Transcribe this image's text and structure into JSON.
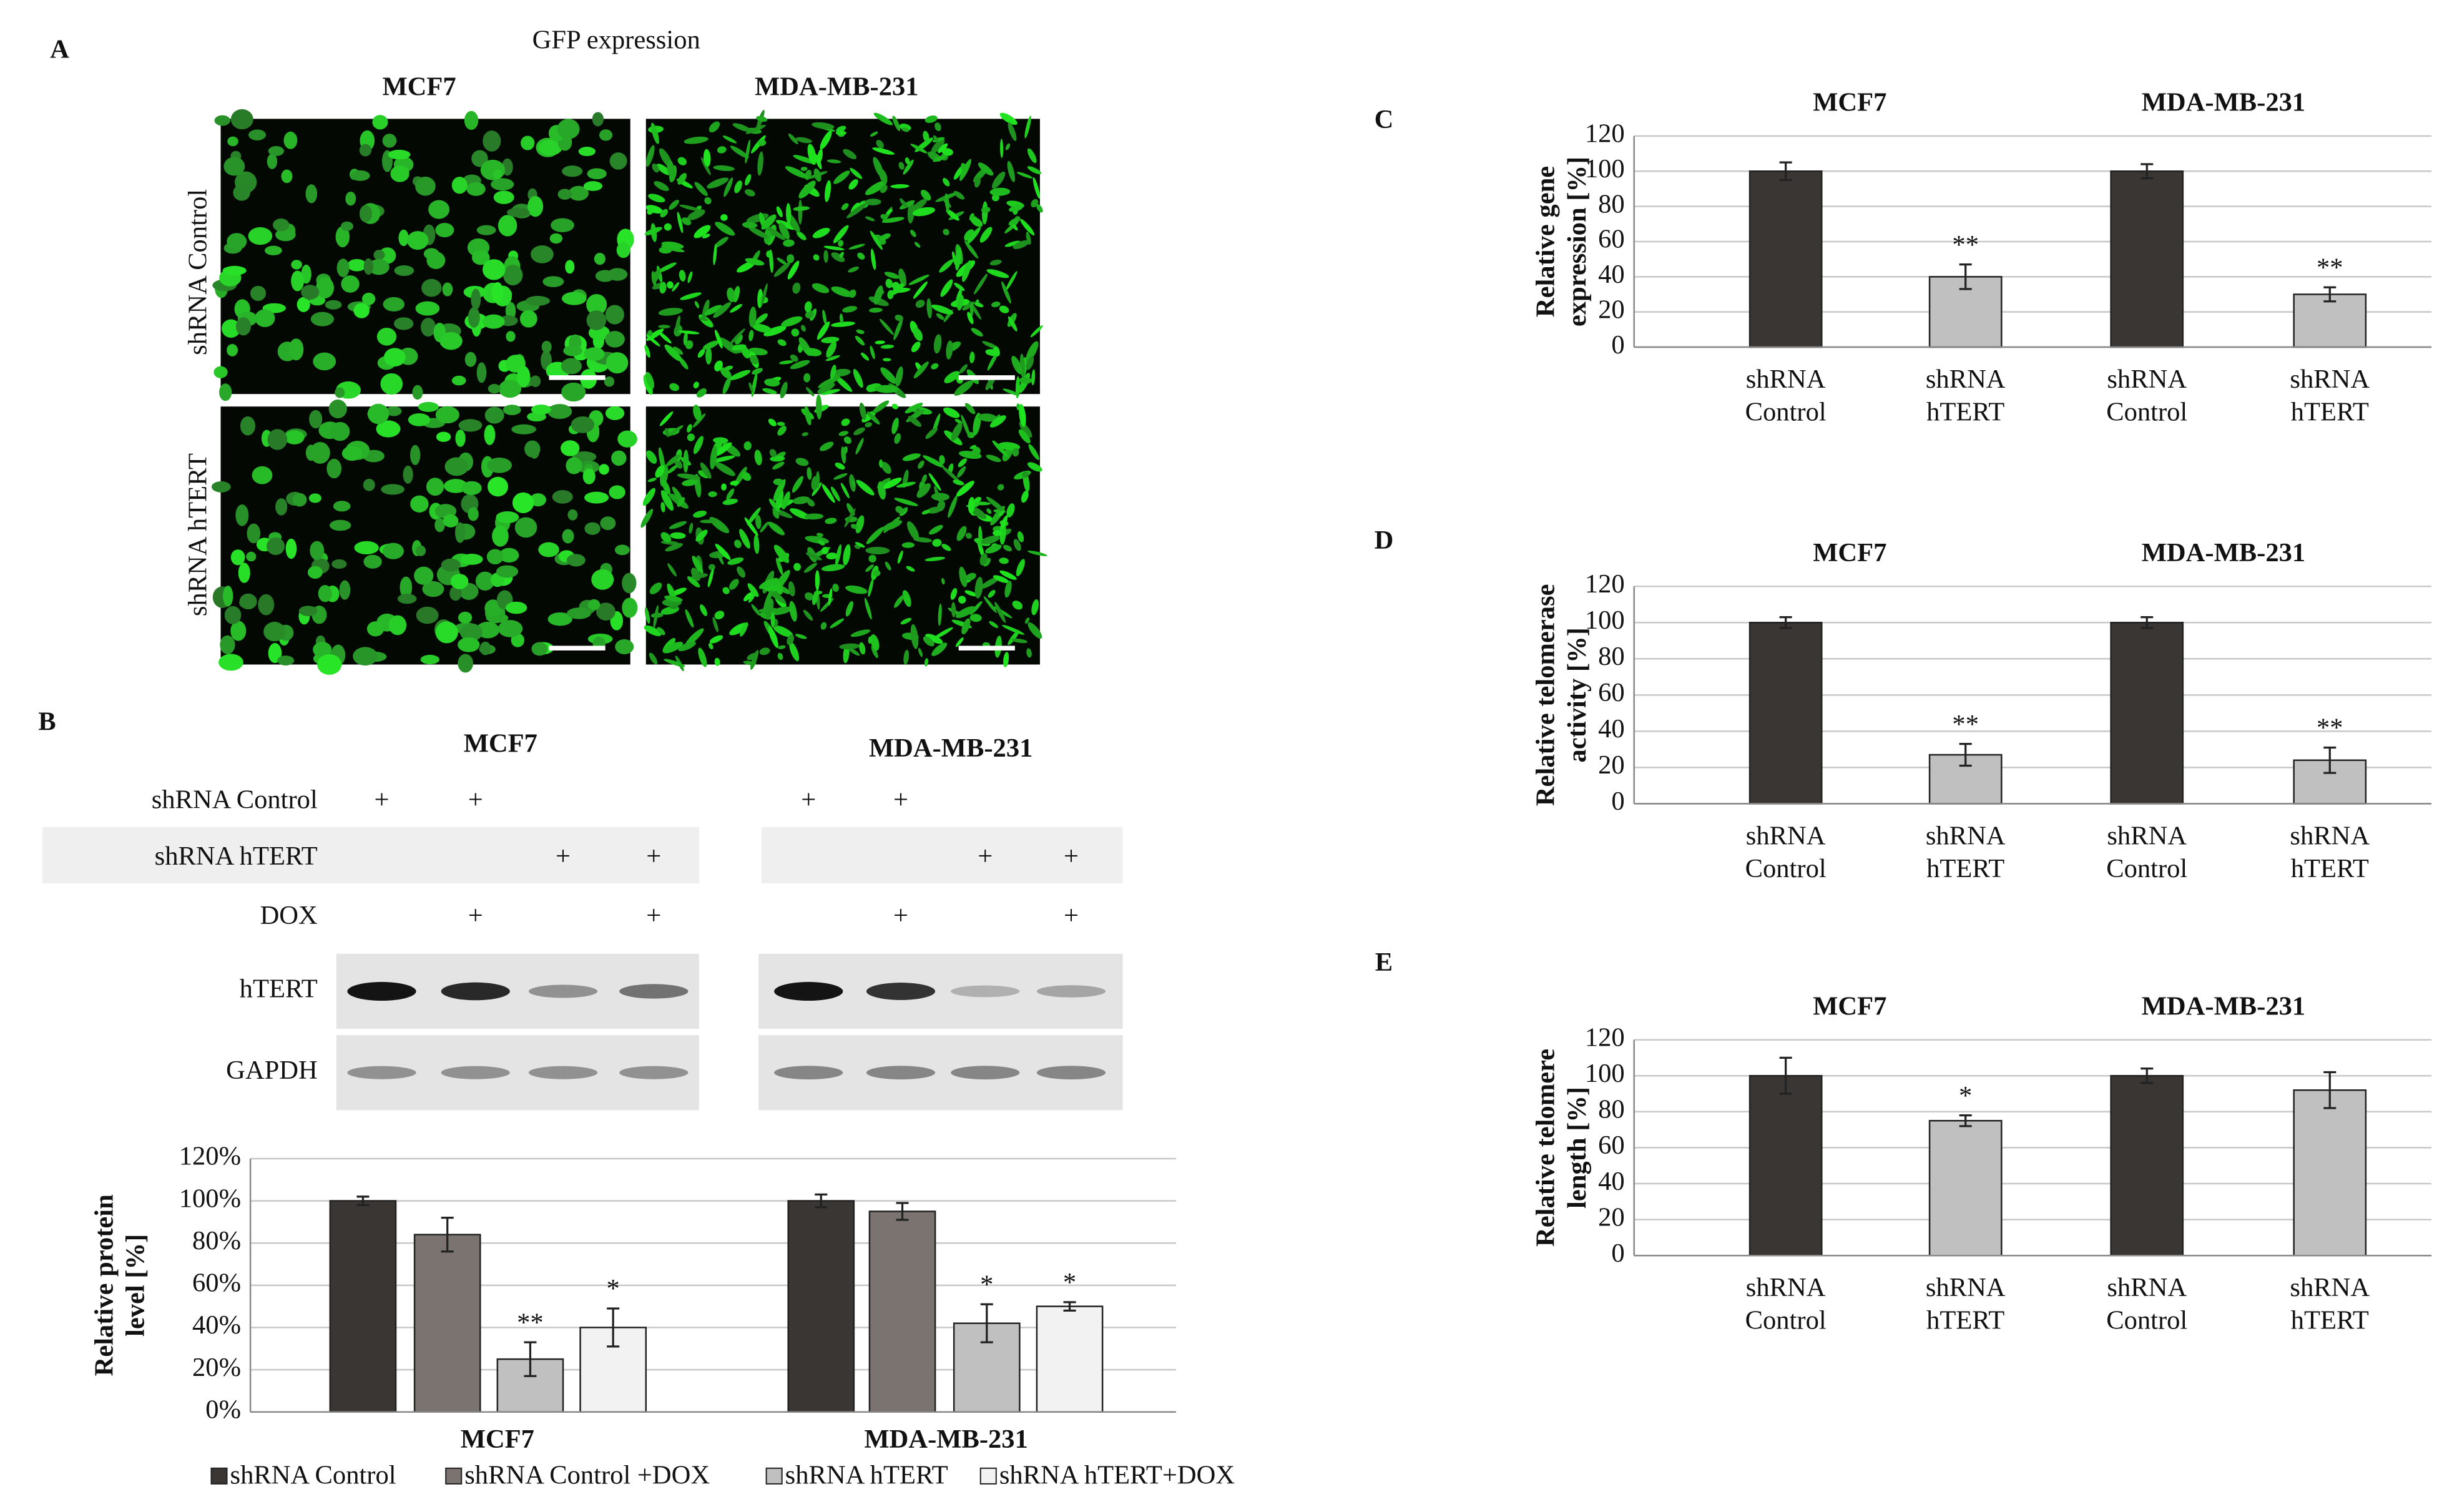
{
  "panel_labels": [
    "A",
    "B",
    "C",
    "D",
    "E"
  ],
  "panel_a": {
    "title": "GFP expression",
    "columns": [
      "MCF7",
      "MDA-MB-231"
    ],
    "rows": [
      "shRNA Control",
      "shRNA hTERT"
    ]
  },
  "panel_b_blot": {
    "columns": [
      "MCF7",
      "MDA-MB-231"
    ],
    "conditions": [
      {
        "name": "shRNA Control",
        "marks": [
          "+",
          "+",
          null,
          null,
          "+",
          "+",
          null,
          null
        ]
      },
      {
        "name": "shRNA hTERT",
        "marks": [
          null,
          null,
          "+",
          "+",
          null,
          null,
          "+",
          "+"
        ]
      },
      {
        "name": "DOX",
        "marks": [
          null,
          "+",
          null,
          "+",
          null,
          "+",
          null,
          "+"
        ]
      }
    ],
    "bands": [
      "hTERT",
      "GAPDH"
    ]
  },
  "chart_data": [
    {
      "type": "bar",
      "y_label": [
        "Relative protein",
        "level [%]"
      ],
      "categories": [
        "MCF7",
        "MDA-MB-231"
      ],
      "series": [
        {
          "name": "shRNA Control",
          "color": "#3a3634",
          "values": [
            100,
            100
          ],
          "errors": [
            2,
            3
          ],
          "significance": [
            null,
            null
          ]
        },
        {
          "name": "shRNA Control +DOX",
          "color": "#7a7370",
          "values": [
            84,
            95
          ],
          "errors": [
            8,
            4
          ],
          "significance": [
            null,
            null
          ]
        },
        {
          "name": "shRNA hTERT",
          "color": "#c0c0c0",
          "values": [
            25,
            42
          ],
          "errors": [
            8,
            9
          ],
          "significance": [
            "**",
            "*"
          ]
        },
        {
          "name": "shRNA hTERT+DOX",
          "color": "#f2f2f2",
          "values": [
            40,
            50
          ],
          "errors": [
            9,
            2
          ],
          "significance": [
            "*",
            "*"
          ]
        }
      ],
      "ylim": [
        0,
        120
      ],
      "yticks": [
        {
          "value": 0,
          "label": "0%"
        },
        {
          "value": 20,
          "label": "20%"
        },
        {
          "value": 40,
          "label": "40%"
        },
        {
          "value": 60,
          "label": "60%"
        },
        {
          "value": 80,
          "label": "80%"
        },
        {
          "value": 100,
          "label": "100%"
        },
        {
          "value": 120,
          "label": "120%"
        }
      ],
      "grid": true,
      "legend": "bottom"
    },
    {
      "type": "bar",
      "groups": [
        "MCF7",
        "MDA-MB-231"
      ],
      "y_label": [
        "Relative gene",
        "expression [%]"
      ],
      "categories": [
        [
          "shRNA",
          "Control"
        ],
        [
          "shRNA",
          "hTERT"
        ],
        [
          "shRNA",
          "Control"
        ],
        [
          "shRNA",
          "hTERT"
        ]
      ],
      "values": [
        100,
        40,
        100,
        30
      ],
      "errors": [
        5,
        7,
        4,
        4
      ],
      "significance": [
        null,
        "**",
        null,
        "**"
      ],
      "colors": [
        "#3a3634",
        "#c0c0c0",
        "#3a3634",
        "#c0c0c0"
      ],
      "ylim": [
        0,
        120
      ],
      "yticks": [
        0,
        20,
        40,
        60,
        80,
        100,
        120
      ],
      "grid": true
    },
    {
      "type": "bar",
      "groups": [
        "MCF7",
        "MDA-MB-231"
      ],
      "y_label": [
        "Relative telomerase",
        "activity [%]"
      ],
      "categories": [
        [
          "shRNA",
          "Control"
        ],
        [
          "shRNA",
          "hTERT"
        ],
        [
          "shRNA",
          "Control"
        ],
        [
          "shRNA",
          "hTERT"
        ]
      ],
      "values": [
        100,
        27,
        100,
        24
      ],
      "errors": [
        3,
        6,
        3,
        7
      ],
      "significance": [
        null,
        "**",
        null,
        "**"
      ],
      "colors": [
        "#3a3634",
        "#c0c0c0",
        "#3a3634",
        "#c0c0c0"
      ],
      "ylim": [
        0,
        120
      ],
      "yticks": [
        0,
        20,
        40,
        60,
        80,
        100,
        120
      ],
      "grid": true
    },
    {
      "type": "bar",
      "groups": [
        "MCF7",
        "MDA-MB-231"
      ],
      "y_label": [
        "Relative telomere",
        "length [%]"
      ],
      "categories": [
        [
          "shRNA",
          "Control"
        ],
        [
          "shRNA",
          "hTERT"
        ],
        [
          "shRNA",
          "Control"
        ],
        [
          "shRNA",
          "hTERT"
        ]
      ],
      "values": [
        100,
        75,
        100,
        92
      ],
      "errors": [
        10,
        3,
        4,
        10
      ],
      "significance": [
        null,
        "*",
        null,
        null
      ],
      "colors": [
        "#3a3634",
        "#c0c0c0",
        "#3a3634",
        "#c0c0c0"
      ],
      "ylim": [
        0,
        120
      ],
      "yticks": [
        0,
        20,
        40,
        60,
        80,
        100,
        120
      ],
      "grid": true
    }
  ]
}
